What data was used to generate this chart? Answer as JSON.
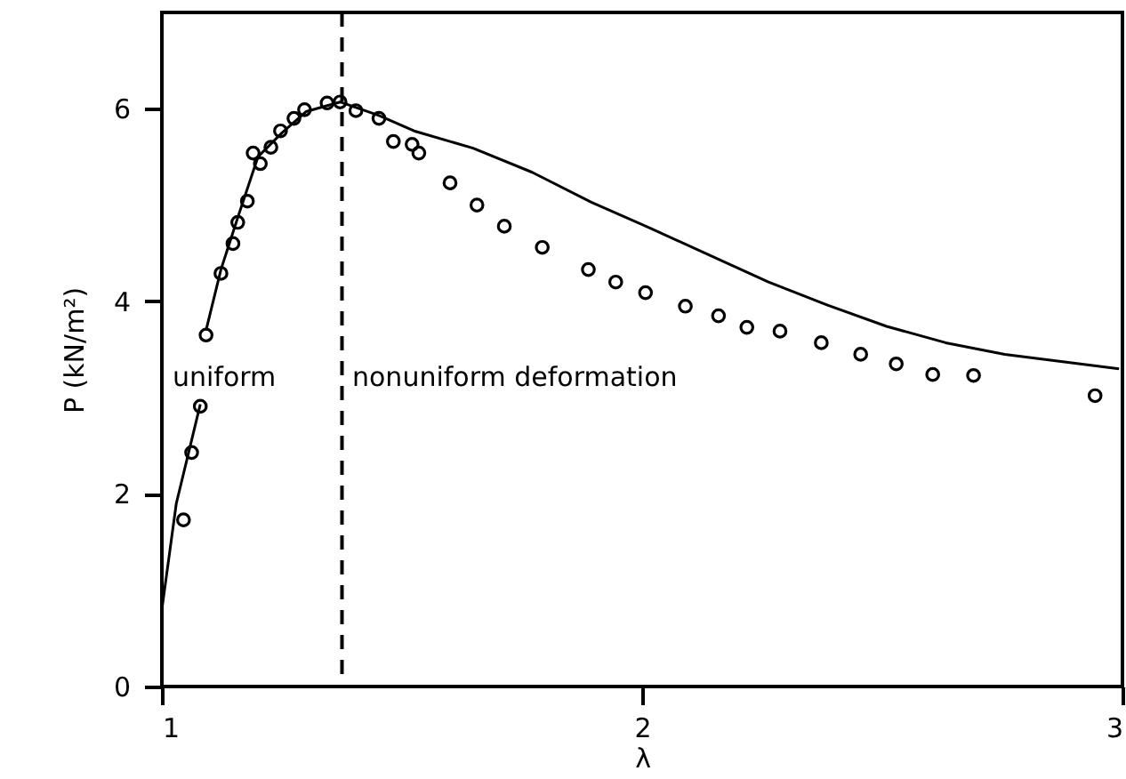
{
  "chart_data": {
    "type": "scatter",
    "xlabel": "λ",
    "ylabel": "P (kN/m²)",
    "xlim": [
      1,
      3
    ],
    "ylim": [
      0,
      7
    ],
    "xticks": [
      1,
      2,
      3
    ],
    "yticks": [
      0,
      2,
      4,
      6
    ],
    "grid": false,
    "series": [
      {
        "type": "scatter",
        "color": "#000000",
        "marker": "circle",
        "x": [
          1.045,
          1.062,
          1.08,
          1.092,
          1.123,
          1.148,
          1.158,
          1.178,
          1.19,
          1.205,
          1.227,
          1.247,
          1.275,
          1.297,
          1.344,
          1.371,
          1.404,
          1.452,
          1.482,
          1.521,
          1.535,
          1.6,
          1.656,
          1.713,
          1.792,
          1.888,
          1.945,
          2.007,
          2.09,
          2.159,
          2.218,
          2.287,
          2.373,
          2.455,
          2.529,
          2.605,
          2.69,
          2.943
        ],
        "values": [
          1.73,
          2.43,
          2.91,
          3.65,
          4.29,
          4.6,
          4.82,
          5.04,
          5.54,
          5.43,
          5.6,
          5.77,
          5.9,
          5.99,
          6.06,
          6.07,
          5.98,
          5.9,
          5.66,
          5.63,
          5.54,
          5.23,
          5,
          4.78,
          4.56,
          4.33,
          4.2,
          4.09,
          3.95,
          3.85,
          3.73,
          3.69,
          3.57,
          3.45,
          3.35,
          3.24,
          3.23,
          3.02
        ]
      },
      {
        "type": "line",
        "color": "#000000",
        "x": [
          1,
          1.03,
          1.08
        ],
        "values": [
          0.8,
          1.9,
          2.93
        ]
      },
      {
        "type": "line",
        "color": "#000000",
        "x": [
          1.092,
          1.123,
          1.16,
          1.2,
          1.25,
          1.3,
          1.371,
          1.452,
          1.525,
          1.648,
          1.771,
          1.894,
          2.017,
          2.14,
          2.263,
          2.386,
          2.509,
          2.632,
          2.755,
          2.993
        ],
        "values": [
          3.7,
          4.33,
          4.9,
          5.5,
          5.75,
          5.97,
          6.07,
          5.93,
          5.77,
          5.59,
          5.34,
          5.03,
          4.76,
          4.48,
          4.2,
          3.96,
          3.74,
          3.57,
          3.45,
          3.3
        ]
      }
    ],
    "ref_lines": [
      {
        "axis": "x",
        "value": 1.375,
        "color": "#000000",
        "line_style": "dashed"
      }
    ],
    "annotations": [
      "uniform",
      "nonuniform deformation"
    ]
  }
}
